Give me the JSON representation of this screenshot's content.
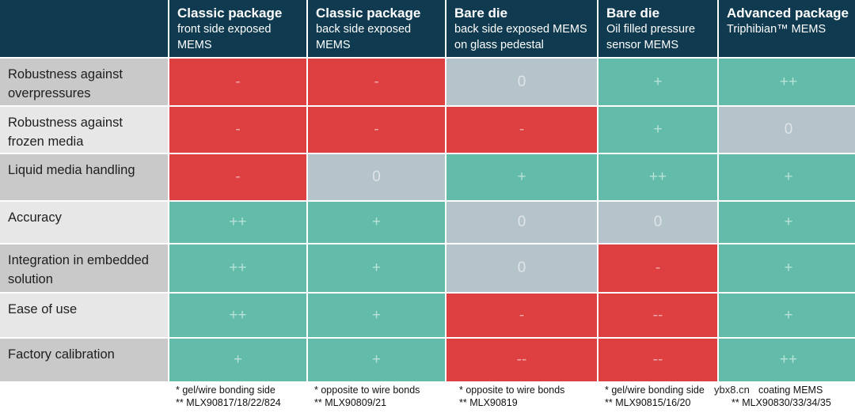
{
  "colors": {
    "header_bg": "#0f3a4f",
    "minus": "#de3f41",
    "zero": "#b5c4ca",
    "plus": "#63bca9"
  },
  "columns": [
    {
      "title": "Classic package",
      "subtitle": "front side exposed MEMS"
    },
    {
      "title": "Classic package",
      "subtitle": "back side exposed MEMS"
    },
    {
      "title": "Bare die",
      "subtitle": "back side exposed MEMS on glass pedestal"
    },
    {
      "title": "Bare die",
      "subtitle": "Oil filled pressure sensor MEMS"
    },
    {
      "title": "Advanced package",
      "subtitle": "Triphibian™ MEMS"
    }
  ],
  "rows": [
    {
      "label": "Robustness against overpressures",
      "ratings": [
        "-",
        "-",
        "0",
        "+",
        "++"
      ]
    },
    {
      "label": "Robustness against frozen media",
      "ratings": [
        "-",
        "-",
        "-",
        "+",
        "0"
      ]
    },
    {
      "label": "Liquid media handling",
      "ratings": [
        "-",
        "0",
        "+",
        "++",
        "+"
      ]
    },
    {
      "label": "Accuracy",
      "ratings": [
        "++",
        "+",
        "0",
        "0",
        "+"
      ]
    },
    {
      "label": "Integration in embedded solution",
      "ratings": [
        "++",
        "+",
        "0",
        "-",
        "+"
      ]
    },
    {
      "label": "Ease of use",
      "ratings": [
        "++",
        "+",
        "-",
        "--",
        "+"
      ]
    },
    {
      "label": "Factory calibration",
      "ratings": [
        "+",
        "+",
        "--",
        "--",
        "++"
      ]
    }
  ],
  "footnotes": [
    {
      "line1": "* gel/wire bonding side",
      "line2": "** MLX90817/18/22/824"
    },
    {
      "line1": "* opposite to wire bonds",
      "line2": "** MLX90809/21"
    },
    {
      "line1": "* opposite to wire bonds",
      "line2": "** MLX90819"
    },
    {
      "line1": "* gel/wire bonding side",
      "line2": "** MLX90815/16/20"
    },
    {
      "line1": "coating MEMS",
      "line2": "** MLX90830/33/34/35"
    }
  ],
  "watermark": "ybx8.cn"
}
